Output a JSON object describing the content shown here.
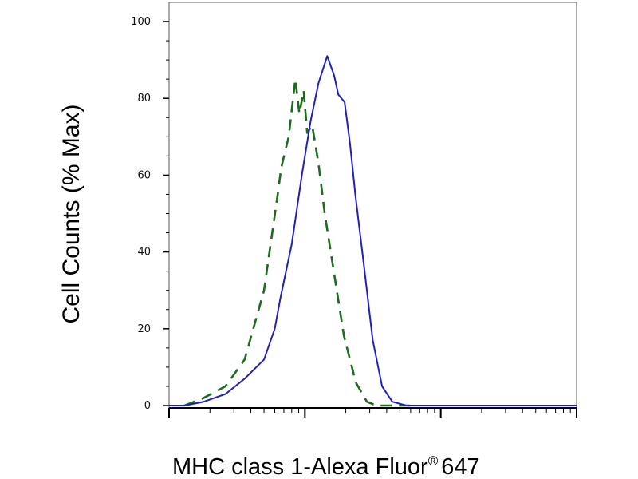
{
  "chart_data": {
    "type": "line",
    "title": "",
    "xlabel": "MHC class 1-Alexa Fluor",
    "xlabel_mark": "®",
    "xlabel_suffix": "647",
    "ylabel": "Cell Counts (% Max)",
    "x_scale": "log",
    "x_decades": [
      1,
      10,
      100,
      1000
    ],
    "xlim": [
      1,
      1000
    ],
    "ylim": [
      0,
      100
    ],
    "y_ticks": [
      0,
      20,
      40,
      60,
      80,
      100
    ],
    "y_tick_labels": [
      "0",
      "20",
      "40",
      "60",
      "80",
      "100"
    ],
    "grid": false,
    "series": [
      {
        "line_style": "dashed",
        "color": "#1d6b1d",
        "x": [
          1.3,
          1.8,
          2.6,
          3.6,
          5.0,
          6.3,
          6.7,
          7.6,
          8.5,
          9.1,
          9.8,
          10.4,
          11.3,
          12.6,
          14.0,
          15.8,
          19.4,
          23.7,
          28.6,
          33.6,
          40.8,
          49.0,
          60.0
        ],
        "y": [
          0,
          2,
          5,
          12,
          30,
          55,
          62,
          70,
          85,
          76,
          82,
          71,
          73,
          63,
          50,
          38,
          18,
          6,
          1,
          0,
          0,
          0,
          0
        ]
      },
      {
        "line_style": "solid",
        "color": "#2020c0",
        "x": [
          1.0,
          1.3,
          1.8,
          2.6,
          3.6,
          5.0,
          6.0,
          6.6,
          8.0,
          9.5,
          11.0,
          12.6,
          14.6,
          16.4,
          17.6,
          19.6,
          21.5,
          23.5,
          27.3,
          31.6,
          37.0,
          44.0,
          56.0,
          80.0,
          150.0,
          1000.0
        ],
        "y": [
          0,
          0,
          1,
          3,
          7,
          12,
          20,
          28,
          42,
          60,
          74,
          84,
          91,
          86,
          81,
          79,
          68,
          55,
          36,
          17,
          5,
          1,
          0,
          0,
          0,
          0
        ]
      }
    ]
  }
}
